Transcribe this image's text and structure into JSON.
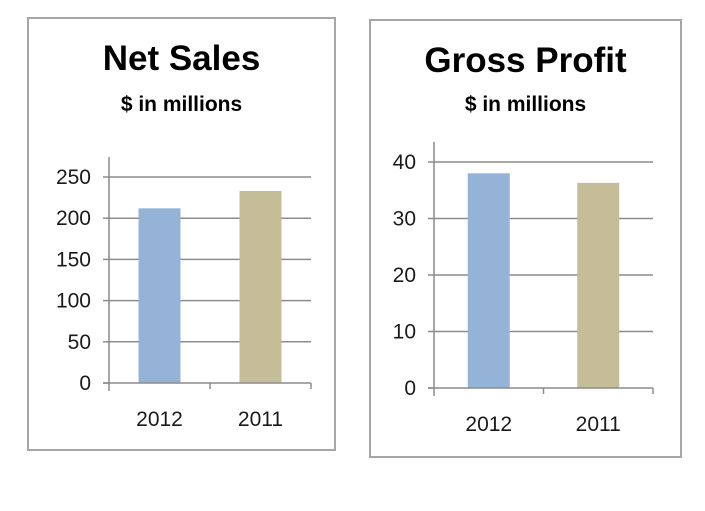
{
  "chart_data": [
    {
      "type": "bar",
      "title": "Net Sales",
      "subtitle": "$ in millions",
      "categories": [
        "2012",
        "2011"
      ],
      "values": [
        212,
        233
      ],
      "colors": [
        "#95b3d7",
        "#c4bd97"
      ],
      "ylim": [
        0,
        250
      ],
      "yticks": [
        0,
        50,
        100,
        150,
        200,
        250
      ],
      "grid": true,
      "legend": "none"
    },
    {
      "type": "bar",
      "title": "Gross Profit",
      "subtitle": "$ in millions",
      "categories": [
        "2012",
        "2011"
      ],
      "values": [
        38,
        36.3
      ],
      "colors": [
        "#95b3d7",
        "#c4bd97"
      ],
      "ylim": [
        0,
        40
      ],
      "yticks": [
        0,
        10,
        20,
        30,
        40
      ],
      "grid": true,
      "legend": "none"
    }
  ]
}
